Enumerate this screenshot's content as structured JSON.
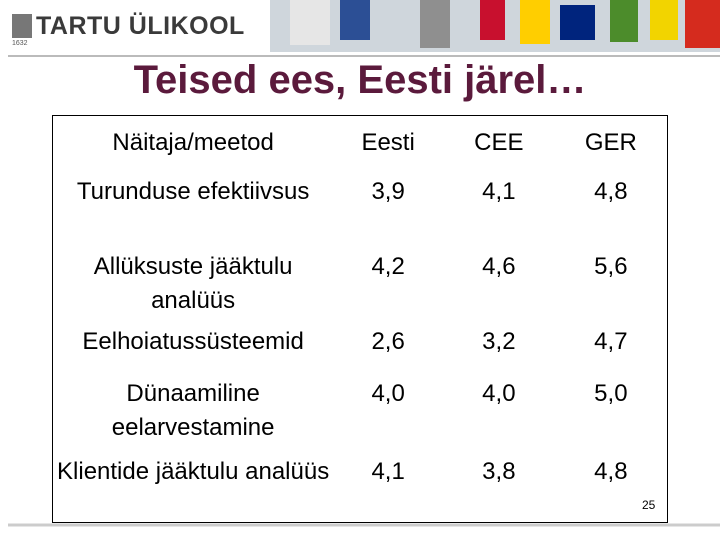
{
  "header": {
    "logo": "TARTU ÜLIKOOL",
    "year": "1632"
  },
  "title": "Teised ees, Eesti järel…",
  "table": {
    "columns": [
      "Näitaja/meetod",
      "Eesti",
      "CEE",
      "GER"
    ],
    "rows": [
      [
        "Turunduse efektiivsus",
        "3,9",
        "4,1",
        "4,8"
      ],
      [
        "Allüksuste jääktulu analüüs",
        "4,2",
        "4,6",
        "5,6"
      ],
      [
        "Eelhoiatussüsteemid",
        "2,6",
        "3,2",
        "4,7"
      ],
      [
        "Dünaamiline eelarvestamine",
        "4,0",
        "4,0",
        "5,0"
      ],
      [
        "Klientide jääktulu analüüs",
        "4,1",
        "3,8",
        "4,8"
      ]
    ]
  },
  "page_number": "25"
}
